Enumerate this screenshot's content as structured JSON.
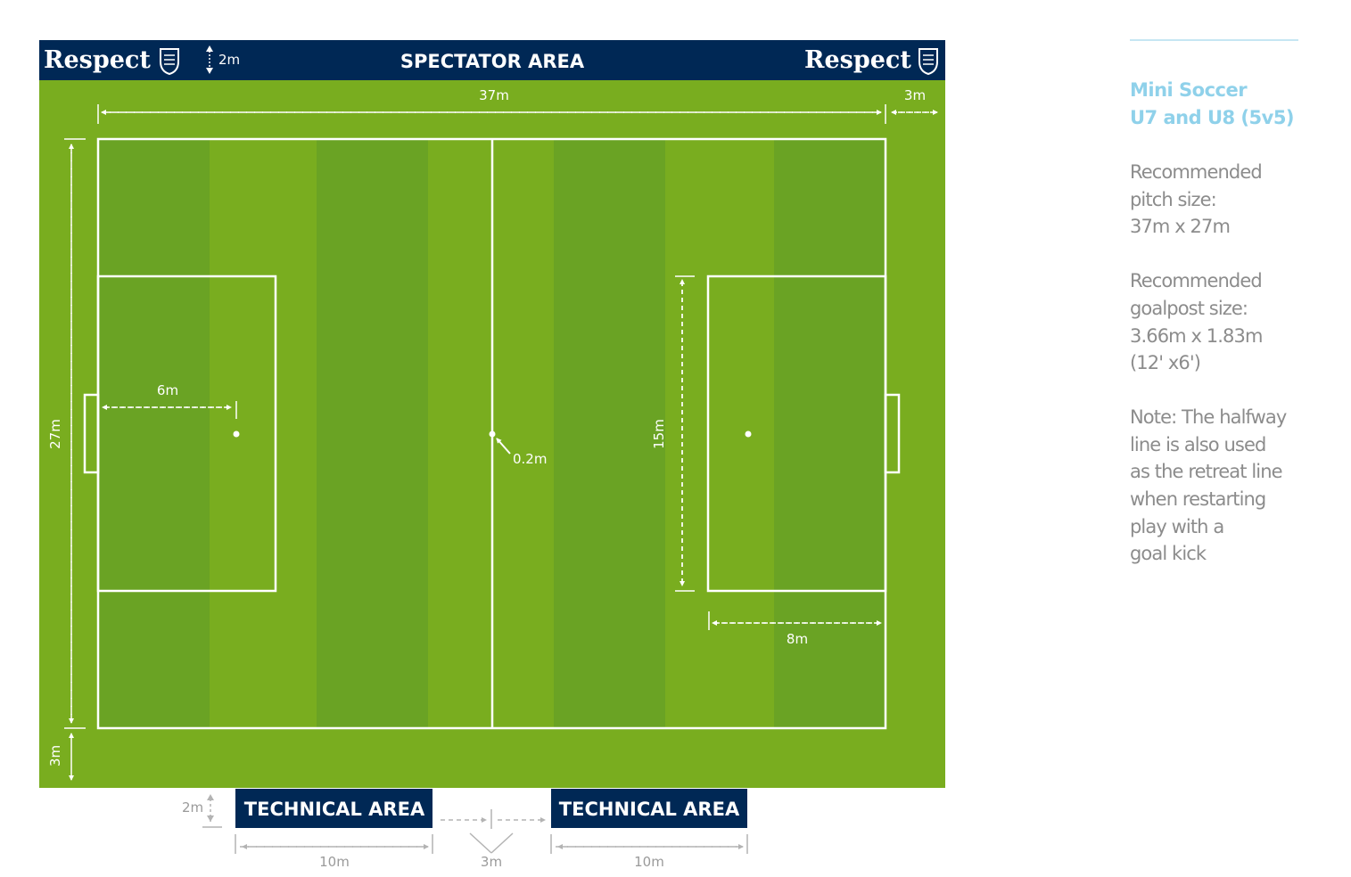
{
  "banner": {
    "left_logo_text": "Respect",
    "right_logo_text": "Respect",
    "spectator_area": "SPECTATOR AREA",
    "spectator_gap": "2m"
  },
  "dimensions": {
    "pitch_length": "37m",
    "runoff_side": "3m",
    "pitch_width": "27m",
    "runoff_bottom": "3m",
    "penalty_spot_distance": "6m",
    "centre_spot": "0.2m",
    "area_width": "15m",
    "area_depth": "8m"
  },
  "technical": {
    "left_label": "TECHNICAL AREA",
    "right_label": "TECHNICAL AREA",
    "gap_label": "2m",
    "left_length": "10m",
    "middle_gap": "3m",
    "right_length": "10m"
  },
  "sidebar": {
    "title_line1": "Mini Soccer",
    "title_line2": "U7 and U8 (5v5)",
    "pitch_lines": [
      "Recommended",
      "pitch size:",
      "37m x 27m"
    ],
    "goal_lines": [
      "Recommended",
      "goalpost size:",
      "3.66m x 1.83m",
      "(12' x6')"
    ],
    "note_lines": [
      "Note: The halfway",
      "line is also used",
      "as the retreat line",
      "when restarting",
      "play with a",
      "goal kick"
    ]
  },
  "colors": {
    "navy": "#002855",
    "grass_light": "#79ad1f",
    "grass_dark": "#6aa324",
    "accent_blue": "#8fd1ea",
    "text_gray": "#8c8c8c"
  }
}
